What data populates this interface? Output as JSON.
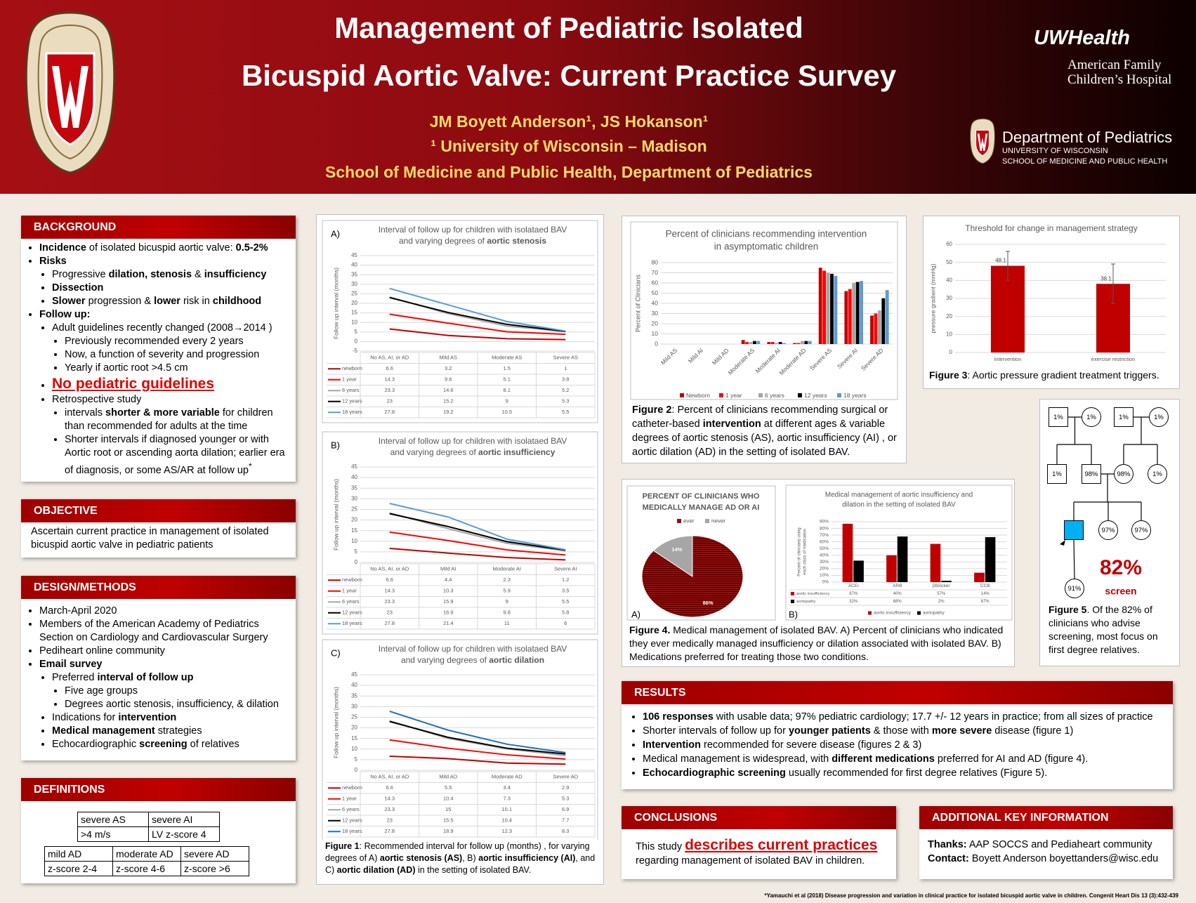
{
  "header": {
    "title": [
      "Management of Pediatric Isolated",
      "Bicuspid Aortic Valve: Current Practice Survey"
    ],
    "authors": "JM Boyett Anderson¹, JS Hokanson¹",
    "affiliation": "¹ University of Wisconsin – Madison",
    "school": "School of Medicine and Public Health, Department of Pediatrics",
    "uw_health": "UWHealth",
    "hospital": [
      "American Family",
      "Children’s Hospital"
    ],
    "department": "Department of Pediatrics",
    "university": "UNIVERSITY OF WISCONSIN",
    "university_school": "SCHOOL OF MEDICINE AND PUBLIC HEALTH"
  },
  "background": {
    "heading": "BACKGROUND",
    "items": [
      {
        "text": [
          {
            "b": "Incidence"
          },
          " of isolated bicuspid aortic valve: ",
          {
            "b": "0.5-2%"
          }
        ]
      },
      {
        "text": [
          {
            "b": "Risks"
          }
        ],
        "sub": [
          {
            "text": [
              "Progressive ",
              {
                "b": "dilation, stenosis"
              },
              " & ",
              {
                "b": "insufficiency"
              }
            ]
          },
          {
            "text": [
              {
                "b": "Dissection"
              }
            ]
          },
          {
            "text": [
              {
                "b": "Slower"
              },
              " progression & ",
              {
                "b": "lower"
              },
              " risk in ",
              {
                "b": "childhood"
              }
            ]
          }
        ]
      },
      {
        "text": [
          {
            "b": "Follow up:"
          }
        ],
        "sub": [
          {
            "text": [
              "Adult guidelines recently changed (2008→2014 )"
            ],
            "sub": [
              {
                "text": [
                  "Previously recommended every 2 years"
                ]
              },
              {
                "text": [
                  "Now, a function of severity and progression"
                ]
              },
              {
                "text": [
                  "Yearly if aortic root >4.5 cm"
                ]
              }
            ]
          },
          {
            "text": [
              {
                "r": "No pediatric guidelines"
              }
            ]
          },
          {
            "text": [
              "Retrospective study"
            ],
            "sub": [
              {
                "text": [
                  " intervals ",
                  {
                    "b": "shorter & more variable"
                  },
                  " for children than recommended for adults  at the time"
                ]
              },
              {
                "text": [
                  "Shorter intervals if diagnosed younger or with Aortic root or ascending aorta dilation; earlier era of diagnosis, or some AS/AR at follow up",
                  {
                    "sup": "*"
                  }
                ]
              }
            ]
          }
        ]
      }
    ]
  },
  "objective": {
    "heading": "OBJECTIVE",
    "text": "Ascertain current practice in management of isolated bicuspid aortic valve in pediatric patients"
  },
  "methods": {
    "heading": "DESIGN/METHODS",
    "items": [
      {
        "text": [
          "March-April 2020"
        ]
      },
      {
        "text": [
          "Members of the American Academy of Pediatrics Section on Cardiology and Cardiovascular Surgery"
        ]
      },
      {
        "text": [
          "Pediheart online community"
        ]
      },
      {
        "text": [
          {
            "b": "Email survey"
          }
        ],
        "sub": [
          {
            "text": [
              "Preferred ",
              {
                "b": "interval of follow up"
              }
            ],
            "sub": [
              {
                "text": [
                  "Five age groups"
                ]
              },
              {
                "text": [
                  "Degrees aortic stenosis, insufficiency, & dilation"
                ]
              }
            ]
          },
          {
            "text": [
              "Indications for ",
              {
                "b": "intervention"
              }
            ]
          },
          {
            "text": [
              {
                "b": "Medical management"
              },
              " strategies"
            ]
          },
          {
            "text": [
              "Echocardiographic ",
              {
                "b": "screening"
              },
              " of relatives"
            ]
          }
        ]
      }
    ]
  },
  "definitions": {
    "heading": "DEFINITIONS",
    "tables": [
      [
        [
          "severe AS",
          "severe AI"
        ],
        [
          ">4 m/s",
          "LV z-score 4"
        ]
      ],
      [
        [
          "mild AD",
          "moderate AD",
          "severe AD"
        ],
        [
          "z-score 2-4",
          "z-score 4-6",
          "z-score >6"
        ]
      ]
    ]
  },
  "figure1": {
    "panels": [
      {
        "type": "line",
        "label": "A)",
        "title": "Interval of follow up for children with isolataed BAV",
        "subtitle": [
          "and varying degrees of ",
          {
            "b": "aortic stenosis"
          }
        ],
        "ylabel": "Follow up interval (months)",
        "ylim": [
          -5,
          45
        ],
        "yticks": [
          -5,
          0,
          5,
          10,
          15,
          20,
          25,
          30,
          35,
          40,
          45
        ],
        "grid": true,
        "categories": [
          "No AS, AI, or AD",
          "Mild AS",
          "Moderate AS",
          "Severe AS"
        ],
        "series": [
          {
            "name": "newborn",
            "color": "#c00000",
            "values": [
              6.6,
              3.2,
              1.5,
              1
            ]
          },
          {
            "name": "1 year",
            "color": "#ff0000",
            "values": [
              14.3,
              9.6,
              5.1,
              3.8
            ]
          },
          {
            "name": "6 years",
            "color": "#a6a6a6",
            "values": [
              23.3,
              14.6,
              8.1,
              5.2
            ]
          },
          {
            "name": "12 years",
            "color": "#000000",
            "values": [
              23,
              15.2,
              9,
              5.3
            ]
          },
          {
            "name": "18 years",
            "color": "#5b9bd5",
            "values": [
              27.8,
              19.2,
              10.5,
              5.5
            ]
          }
        ]
      },
      {
        "type": "line",
        "label": "B)",
        "title": "Interval of follow up for children with isolataed BAV",
        "subtitle": [
          "and varying degrees of ",
          {
            "b": "aortic insufficiency"
          }
        ],
        "ylabel": "Follow up interval (months)",
        "ylim": [
          0,
          45
        ],
        "yticks": [
          0,
          5,
          10,
          15,
          20,
          25,
          30,
          35,
          40,
          45
        ],
        "grid": true,
        "categories": [
          "No AS, AI, or AD",
          "Mild AI",
          "Moderate AI",
          "Severe AI"
        ],
        "series": [
          {
            "name": "newborn",
            "color": "#c00000",
            "values": [
              6.6,
              4.4,
              2.3,
              1.2
            ]
          },
          {
            "name": "1 year",
            "color": "#ff0000",
            "values": [
              14.3,
              10.3,
              5.9,
              3.5
            ]
          },
          {
            "name": "6 years",
            "color": "#a6a6a6",
            "values": [
              23.3,
              15.9,
              9,
              5.5
            ]
          },
          {
            "name": "12 years",
            "color": "#000000",
            "values": [
              23,
              16.9,
              9.8,
              5.8
            ]
          },
          {
            "name": "18 years",
            "color": "#5b9bd5",
            "values": [
              27.8,
              21.4,
              11,
              6
            ]
          }
        ]
      },
      {
        "type": "line",
        "label": "C)",
        "title": "Interval of follow up for children with isolataed BAV",
        "subtitle": [
          "and varying degrees of ",
          {
            "b": "aortic dilation"
          }
        ],
        "ylabel": "Follow up interval (months)",
        "ylim": [
          0,
          45
        ],
        "yticks": [
          0,
          5,
          10,
          15,
          20,
          25,
          30,
          35,
          40,
          45
        ],
        "grid": true,
        "categories": [
          "No AS, AI, or AD",
          "Mild AD",
          "Moderate AD",
          "Severe AD"
        ],
        "series": [
          {
            "name": "newborn",
            "color": "#c00000",
            "values": [
              6.6,
              5.5,
              3.4,
              2.9
            ]
          },
          {
            "name": "1 year",
            "color": "#ff0000",
            "values": [
              14.3,
              10.4,
              7.3,
              5.3
            ]
          },
          {
            "name": "6 years",
            "color": "#a6a6a6",
            "values": [
              23.3,
              15,
              10.1,
              6.9
            ]
          },
          {
            "name": "12 years",
            "color": "#000000",
            "values": [
              23,
              15.5,
              10.4,
              7.7
            ]
          },
          {
            "name": "18 years",
            "color": "#1f6fbf",
            "values": [
              27.8,
              18.9,
              12.3,
              8.3
            ]
          }
        ]
      }
    ],
    "caption": [
      {
        "b": "Figure 1"
      },
      ": Recommended interval for follow up (months) , for varying degrees of A) ",
      {
        "b": "aortic stenosis (AS)"
      },
      ", B) ",
      {
        "b": "aortic insufficiency (AI)"
      },
      ", and C) ",
      {
        "b": "aortic dilation (AD)"
      },
      " in the setting of isolated BAV."
    ]
  },
  "figure2": {
    "chart": {
      "type": "bar",
      "title": [
        "Percent of clinicians recommending intervention",
        "in asymptomatic children"
      ],
      "ylabel": "Percent of Clinicians",
      "ylim": [
        0,
        80
      ],
      "yticks": [
        0,
        10,
        20,
        30,
        40,
        50,
        60,
        70,
        80
      ],
      "grid": true,
      "categories": [
        "Mild AS",
        "Mild AI",
        "Mild AD",
        "Moderate AS",
        "Moderate AI",
        "Moderate AD",
        "Severe AS",
        "Severe AI",
        "Severe AD"
      ],
      "series": [
        {
          "name": "Newborn",
          "color": "#c00000",
          "values": [
            0,
            0,
            0,
            4,
            2,
            1,
            75,
            52,
            28
          ]
        },
        {
          "name": "1 year",
          "color": "#ff0000",
          "values": [
            0,
            0,
            0,
            2,
            2,
            1,
            72,
            54,
            30
          ]
        },
        {
          "name": "6 years",
          "color": "#a6a6a6",
          "values": [
            0,
            0,
            0,
            2,
            1,
            3,
            70,
            60,
            33
          ]
        },
        {
          "name": "12 years",
          "color": "#000000",
          "values": [
            0,
            0,
            0,
            3,
            2,
            3,
            69,
            61,
            45
          ]
        },
        {
          "name": "18 years",
          "color": "#5b9bd5",
          "values": [
            0,
            0,
            0,
            3,
            1,
            3,
            67,
            62,
            53
          ]
        }
      ]
    },
    "caption": [
      {
        "b": "Figure 2"
      },
      ": Percent of clinicians recommending  surgical or catheter-based ",
      {
        "b": "intervention"
      },
      " at different ages & variable degrees of aortic stenosis (AS), aortic insufficiency (AI) , or aortic dilation (AD) in the setting of isolated BAV."
    ]
  },
  "figure3": {
    "chart": {
      "type": "bar",
      "title": "Threshold for change in management strategy",
      "ylabel": "pressure gradient (mmHg)",
      "ylim": [
        0,
        60
      ],
      "yticks": [
        0,
        10,
        20,
        30,
        40,
        50,
        60
      ],
      "grid": true,
      "categories": [
        "intervention",
        "exercise restriction"
      ],
      "values": [
        48.1,
        38.1
      ],
      "errors": [
        8,
        11
      ],
      "color": "#c00000"
    },
    "caption": [
      {
        "b": "Figure 3"
      },
      ": Aortic pressure gradient treatment triggers."
    ]
  },
  "figure4": {
    "pie": {
      "type": "pie",
      "label": "A)",
      "title": [
        "PERCENT OF CLINICIANS WHO",
        "MEDICALLY MANAGE AD OR AI"
      ],
      "labels": [
        "ever",
        "never"
      ],
      "values": [
        86,
        14
      ],
      "value_labels": [
        "86%",
        "14%"
      ],
      "colors": [
        "#9c0a0a",
        "#a6a6a6"
      ]
    },
    "bars": {
      "type": "bar",
      "label": "B)",
      "title": [
        "Medical management of aortic insufficiency and",
        "dilation in the setting of isolated BAV"
      ],
      "ylabel": [
        "Percent of clinicians using",
        "each class of medication"
      ],
      "ylim": [
        0,
        90
      ],
      "grid": true,
      "yticks": [
        {
          "value": 0,
          "label": "0%"
        },
        {
          "value": 10,
          "label": "10%"
        },
        {
          "value": 20,
          "label": "20%"
        },
        {
          "value": 30,
          "label": "30%"
        },
        {
          "value": 40,
          "label": "40%"
        },
        {
          "value": 50,
          "label": "50%"
        },
        {
          "value": 60,
          "label": "60%"
        },
        {
          "value": 70,
          "label": "70%"
        },
        {
          "value": 80,
          "label": "80%"
        },
        {
          "value": 90,
          "label": "90%"
        }
      ],
      "categories": [
        "ACEi",
        "ARB",
        "βblocker",
        "CCB"
      ],
      "series": [
        {
          "name": "aortic insufficiency",
          "color": "#c00000",
          "values": [
            87,
            40,
            57,
            14
          ],
          "value_labels": [
            "87%",
            "40%",
            "57%",
            "14%"
          ]
        },
        {
          "name": "aortopathy",
          "color": "#000000",
          "values": [
            32,
            68,
            2,
            67
          ],
          "value_labels": [
            "32%",
            "68%",
            "2%",
            "67%"
          ]
        }
      ]
    },
    "caption": [
      {
        "b": "Figure 4."
      },
      " Medical management of isolated BAV.  A) Percent of clinicians who indicated they ever medically managed insufficiency or dilation associated with isolated BAV.  B) Medications preferred for treating those two conditions."
    ]
  },
  "figure5": {
    "nodes": [
      {
        "shape": "square",
        "label": "1%"
      },
      {
        "shape": "circle",
        "label": "1%"
      },
      {
        "shape": "square",
        "label": "1%"
      },
      {
        "shape": "circle",
        "label": "1%"
      },
      {
        "shape": "square",
        "label": "1%"
      },
      {
        "shape": "square",
        "label": "98%"
      },
      {
        "shape": "circle",
        "label": "98%"
      },
      {
        "shape": "circle",
        "label": "1%"
      },
      {
        "shape": "square",
        "fill": "#00b0f0"
      },
      {
        "shape": "circle",
        "label": "97%"
      },
      {
        "shape": "circle",
        "label": "97%"
      },
      {
        "shape": "circle",
        "label": "91%"
      }
    ],
    "highlight": "82%",
    "highlight_label": "screen",
    "caption": [
      {
        "b": "Figure 5"
      },
      ". Of the 82% of clinicians who advise screening, most focus on first degree relatives."
    ]
  },
  "results": {
    "heading": "RESULTS",
    "items": [
      {
        "text": [
          {
            "b": "106 responses"
          },
          " with usable data; 97% pediatric cardiology; 17.7 +/- 12 years in practice; from all sizes of practice"
        ]
      },
      {
        "text": [
          "Shorter intervals of follow up for ",
          {
            "b": "younger patients"
          },
          " & those with ",
          {
            "b": "more severe"
          },
          " disease (figure 1)"
        ]
      },
      {
        "text": [
          {
            "b": "Intervention"
          },
          " recommended for severe disease (figures 2 & 3)"
        ]
      },
      {
        "text": [
          "Medical management is widespread, with ",
          {
            "b": "different medications"
          },
          " preferred for AI and AD (figure 4)."
        ]
      },
      {
        "text": [
          {
            "b": "Echocardiographic screening"
          },
          " usually recommended for first degree relatives (Figure 5)."
        ]
      }
    ]
  },
  "conclusions": {
    "heading": "CONCLUSIONS",
    "text": [
      "This study ",
      {
        "r": "describes current practices"
      },
      " regarding management of isolated BAV in children."
    ]
  },
  "additional": {
    "heading": "ADDITIONAL KEY INFORMATION",
    "lines": [
      [
        {
          "b": "Thanks:"
        },
        " AAP SOCCS and Pediaheart community"
      ],
      [
        {
          "b": "Contact:"
        },
        " Boyett Anderson boyettanders@wisc.edu"
      ]
    ]
  },
  "footnote": "*Yamauchi et al (2018) Disease progression and variation in clinical practice for isolated bicuspid aortic valve in children. Congenit Heart Dis 13 (3):432-439"
}
